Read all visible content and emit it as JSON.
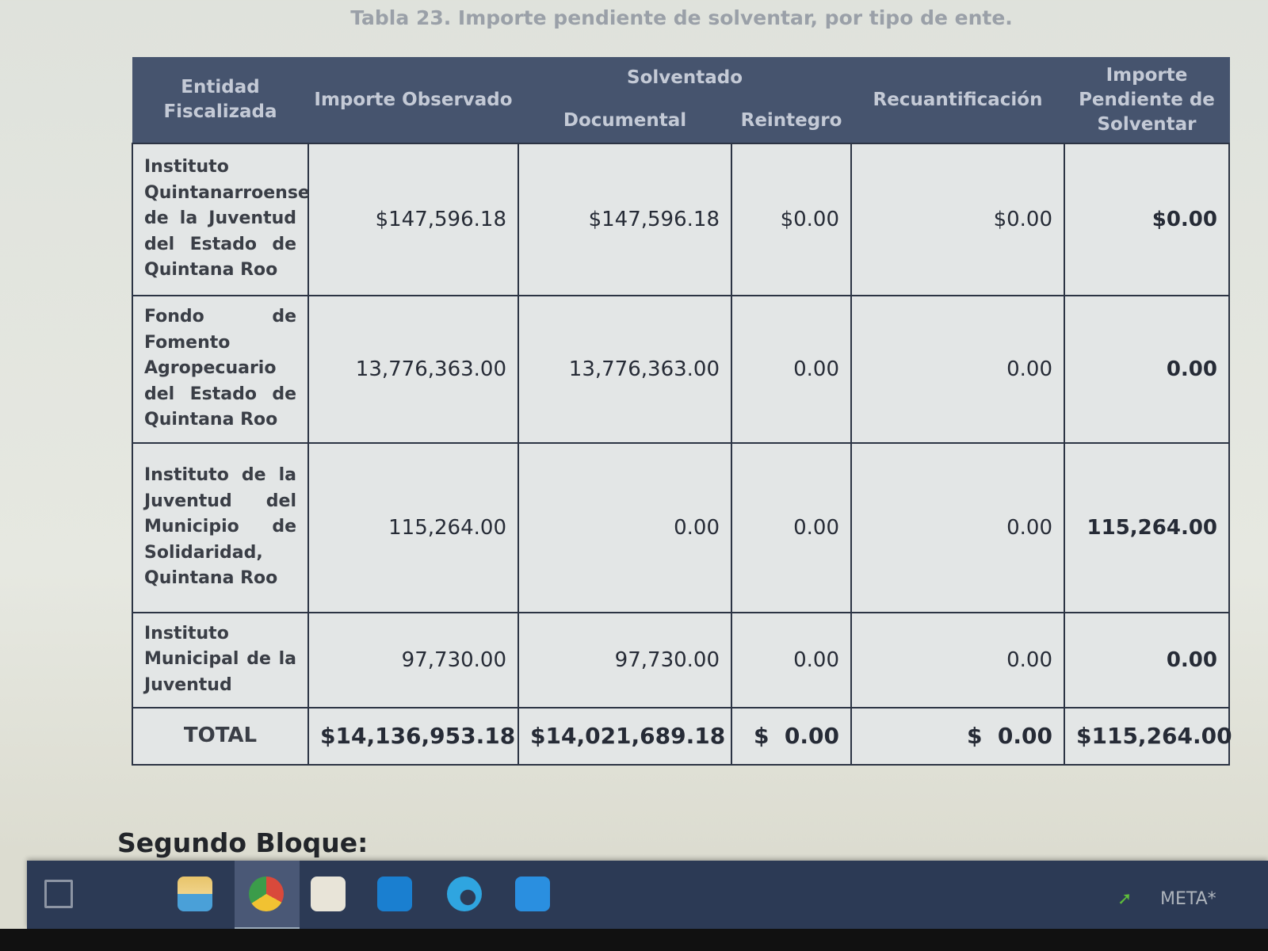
{
  "caption": "Tabla 23. Importe pendiente de solventar, por tipo de ente.",
  "table": {
    "headers": {
      "entidad": "Entidad Fiscalizada",
      "observado": "Importe Observado",
      "solventado": "Solventado",
      "documental": "Documental",
      "reintegro": "Reintegro",
      "recuantificacion": "Recuantificación",
      "pendiente": "Importe Pendiente de Solventar"
    },
    "rows": [
      {
        "entidad": "Instituto Quintanarroense de la Juventud del Estado de Quintana Roo",
        "observado": "$147,596.18",
        "documental": "$147,596.18",
        "reintegro": "$0.00",
        "recuantificacion": "$0.00",
        "pendiente": "$0.00"
      },
      {
        "entidad": "Fondo de Fomento Agropecuario del Estado de Quintana Roo",
        "observado": "13,776,363.00",
        "documental": "13,776,363.00",
        "reintegro": "0.00",
        "recuantificacion": "0.00",
        "pendiente": "0.00"
      },
      {
        "entidad": "Instituto de la Juventud del Municipio de Solidaridad, Quintana Roo",
        "observado": "115,264.00",
        "documental": "0.00",
        "reintegro": "0.00",
        "recuantificacion": "0.00",
        "pendiente": "115,264.00"
      },
      {
        "entidad": "Instituto Municipal de la Juventud",
        "observado": "97,730.00",
        "documental": "97,730.00",
        "reintegro": "0.00",
        "recuantificacion": "0.00",
        "pendiente": "0.00"
      }
    ],
    "total": {
      "entidad": "TOTAL",
      "observado": "$14,136,953.18",
      "documental": "$14,021,689.18",
      "reintegro": "$  0.00",
      "recuantificacion": "$  0.00",
      "pendiente": "$115,264.00"
    }
  },
  "section_heading": "Segundo Bloque:",
  "taskbar": {
    "icons": [
      "task-view-icon",
      "file-explorer-icon",
      "chrome-icon",
      "microsoft-store-icon",
      "outlook-icon",
      "edge-icon",
      "outlook-new-icon"
    ],
    "tray_label": "META*",
    "colors": {
      "background": "#2c3a55",
      "header": "#46546e"
    }
  }
}
